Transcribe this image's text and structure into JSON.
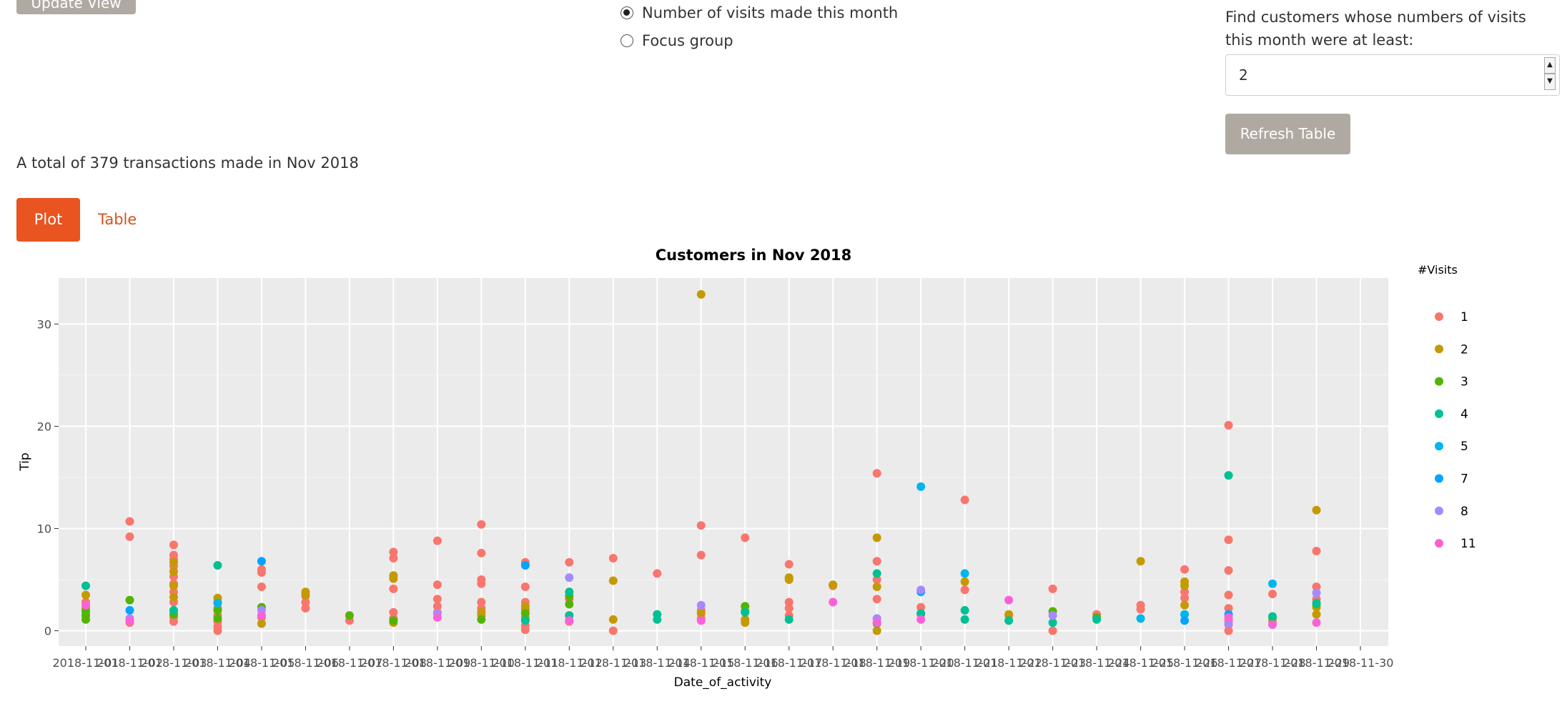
{
  "controls": {
    "update_button_label": "Update View",
    "radio_options": [
      {
        "label": "Number of visits made this month",
        "checked": true
      },
      {
        "label": "Focus group",
        "checked": false
      }
    ],
    "find_label": "Find customers whose numbers of visits this month were at least:",
    "min_visits_value": "2",
    "refresh_button_label": "Refresh Table"
  },
  "summary_text": "A total of 379 transactions made in Nov 2018",
  "tabs": [
    {
      "label": "Plot",
      "active": true
    },
    {
      "label": "Table",
      "active": false
    }
  ],
  "chart_data": {
    "type": "scatter",
    "title": "Customers in Nov 2018",
    "xlabel": "Date_of_activity",
    "ylabel": "Tip",
    "legend_title": "#Visits",
    "legend_position": "right",
    "grid": true,
    "ylim": [
      -1.5,
      34.5
    ],
    "yticks": [
      0,
      10,
      20,
      30
    ],
    "categories": [
      "2018-11-01",
      "2018-11-02",
      "2018-11-03",
      "2018-11-04",
      "2018-11-05",
      "2018-11-06",
      "2018-11-07",
      "2018-11-08",
      "2018-11-09",
      "2018-11-10",
      "2018-11-11",
      "2018-11-12",
      "2018-11-13",
      "2018-11-14",
      "2018-11-15",
      "2018-11-16",
      "2018-11-17",
      "2018-11-18",
      "2018-11-19",
      "2018-11-20",
      "2018-11-21",
      "2018-11-22",
      "2018-11-23",
      "2018-11-24",
      "2018-11-25",
      "2018-11-26",
      "2018-11-27",
      "2018-11-28",
      "2018-11-29",
      "2018-11-30"
    ],
    "series": [
      {
        "name": "1",
        "color": "#F8766D",
        "points": [
          [
            0,
            2.8
          ],
          [
            1,
            10.7
          ],
          [
            1,
            9.2
          ],
          [
            1,
            0.8
          ],
          [
            2,
            8.4
          ],
          [
            2,
            7.4
          ],
          [
            2,
            7.0
          ],
          [
            2,
            6.3
          ],
          [
            2,
            5.3
          ],
          [
            2,
            4.6
          ],
          [
            2,
            3.8
          ],
          [
            2,
            2.8
          ],
          [
            2,
            1.9
          ],
          [
            2,
            1.3
          ],
          [
            2,
            0.9
          ],
          [
            3,
            2.2
          ],
          [
            3,
            1.5
          ],
          [
            3,
            0.9
          ],
          [
            3,
            0.4
          ],
          [
            3,
            0.0
          ],
          [
            4,
            6.0
          ],
          [
            4,
            5.7
          ],
          [
            4,
            4.3
          ],
          [
            4,
            1.3
          ],
          [
            5,
            3.4
          ],
          [
            5,
            2.8
          ],
          [
            5,
            2.2
          ],
          [
            6,
            1.0
          ],
          [
            7,
            7.7
          ],
          [
            7,
            7.1
          ],
          [
            7,
            4.1
          ],
          [
            7,
            1.8
          ],
          [
            7,
            1.2
          ],
          [
            8,
            8.8
          ],
          [
            8,
            4.5
          ],
          [
            8,
            3.1
          ],
          [
            8,
            2.4
          ],
          [
            8,
            1.8
          ],
          [
            9,
            10.4
          ],
          [
            9,
            7.6
          ],
          [
            9,
            5.0
          ],
          [
            9,
            4.6
          ],
          [
            9,
            2.8
          ],
          [
            9,
            2.2
          ],
          [
            9,
            1.5
          ],
          [
            10,
            6.7
          ],
          [
            10,
            4.3
          ],
          [
            10,
            2.8
          ],
          [
            10,
            2.0
          ],
          [
            10,
            1.2
          ],
          [
            10,
            0.5
          ],
          [
            10,
            0.1
          ],
          [
            11,
            6.7
          ],
          [
            11,
            3.1
          ],
          [
            11,
            1.5
          ],
          [
            11,
            0.9
          ],
          [
            12,
            7.1
          ],
          [
            12,
            0.0
          ],
          [
            13,
            5.6
          ],
          [
            14,
            10.3
          ],
          [
            14,
            7.4
          ],
          [
            14,
            2.0
          ],
          [
            14,
            1.2
          ],
          [
            15,
            9.1
          ],
          [
            16,
            6.5
          ],
          [
            16,
            2.8
          ],
          [
            16,
            2.2
          ],
          [
            16,
            1.5
          ],
          [
            17,
            4.4
          ],
          [
            18,
            15.4
          ],
          [
            18,
            6.8
          ],
          [
            18,
            5.0
          ],
          [
            18,
            3.1
          ],
          [
            18,
            1.2
          ],
          [
            19,
            2.3
          ],
          [
            19,
            1.6
          ],
          [
            20,
            12.8
          ],
          [
            20,
            4.0
          ],
          [
            21,
            1.5
          ],
          [
            22,
            4.1
          ],
          [
            22,
            0.0
          ],
          [
            23,
            1.6
          ],
          [
            24,
            2.5
          ],
          [
            24,
            2.1
          ],
          [
            25,
            6.0
          ],
          [
            25,
            3.8
          ],
          [
            25,
            3.2
          ],
          [
            26,
            20.1
          ],
          [
            26,
            8.9
          ],
          [
            26,
            5.9
          ],
          [
            26,
            3.5
          ],
          [
            26,
            2.2
          ],
          [
            26,
            1.0
          ],
          [
            26,
            0.6
          ],
          [
            26,
            0.0
          ],
          [
            27,
            3.6
          ],
          [
            27,
            0.9
          ],
          [
            28,
            7.8
          ],
          [
            28,
            4.3
          ],
          [
            28,
            3.1
          ]
        ]
      },
      {
        "name": "2",
        "color": "#C49A00",
        "points": [
          [
            0,
            3.5
          ],
          [
            0,
            2.2
          ],
          [
            2,
            6.7
          ],
          [
            2,
            5.8
          ],
          [
            2,
            4.4
          ],
          [
            2,
            3.3
          ],
          [
            3,
            3.2
          ],
          [
            3,
            2.8
          ],
          [
            4,
            0.7
          ],
          [
            5,
            3.8
          ],
          [
            5,
            3.5
          ],
          [
            7,
            5.4
          ],
          [
            7,
            5.1
          ],
          [
            7,
            0.8
          ],
          [
            9,
            1.8
          ],
          [
            10,
            2.4
          ],
          [
            10,
            2.1
          ],
          [
            10,
            1.3
          ],
          [
            12,
            4.9
          ],
          [
            12,
            1.1
          ],
          [
            14,
            32.9
          ],
          [
            14,
            1.7
          ],
          [
            15,
            1.1
          ],
          [
            15,
            0.8
          ],
          [
            16,
            5.2
          ],
          [
            16,
            5.0
          ],
          [
            17,
            4.5
          ],
          [
            18,
            9.1
          ],
          [
            18,
            4.3
          ],
          [
            18,
            0.0
          ],
          [
            20,
            4.8
          ],
          [
            21,
            1.6
          ],
          [
            24,
            6.8
          ],
          [
            25,
            4.8
          ],
          [
            25,
            4.4
          ],
          [
            25,
            2.5
          ],
          [
            28,
            11.8
          ],
          [
            28,
            2.3
          ],
          [
            28,
            1.6
          ]
        ]
      },
      {
        "name": "3",
        "color": "#53B400",
        "points": [
          [
            0,
            1.9
          ],
          [
            0,
            1.5
          ],
          [
            0,
            1.1
          ],
          [
            1,
            3.0
          ],
          [
            2,
            1.6
          ],
          [
            3,
            2.0
          ],
          [
            3,
            1.2
          ],
          [
            4,
            2.3
          ],
          [
            6,
            1.5
          ],
          [
            7,
            1.0
          ],
          [
            9,
            1.1
          ],
          [
            10,
            1.7
          ],
          [
            11,
            3.4
          ],
          [
            11,
            2.6
          ],
          [
            15,
            2.4
          ],
          [
            15,
            1.9
          ],
          [
            18,
            0.7
          ],
          [
            22,
            1.9
          ],
          [
            23,
            1.3
          ],
          [
            27,
            1.3
          ],
          [
            28,
            2.6
          ]
        ]
      },
      {
        "name": "4",
        "color": "#00C094",
        "points": [
          [
            0,
            4.4
          ],
          [
            2,
            2.0
          ],
          [
            3,
            6.4
          ],
          [
            10,
            1.0
          ],
          [
            11,
            3.8
          ],
          [
            11,
            1.5
          ],
          [
            13,
            1.6
          ],
          [
            13,
            1.1
          ],
          [
            15,
            1.8
          ],
          [
            16,
            1.1
          ],
          [
            18,
            5.6
          ],
          [
            19,
            1.7
          ],
          [
            20,
            2.0
          ],
          [
            20,
            1.1
          ],
          [
            21,
            1.0
          ],
          [
            22,
            0.8
          ],
          [
            23,
            1.1
          ],
          [
            26,
            15.2
          ],
          [
            27,
            1.4
          ],
          [
            28,
            2.7
          ]
        ]
      },
      {
        "name": "5",
        "color": "#00B6EB",
        "points": [
          [
            3,
            2.7
          ],
          [
            19,
            14.1
          ],
          [
            20,
            5.6
          ],
          [
            24,
            1.2
          ],
          [
            25,
            1.6
          ],
          [
            27,
            4.6
          ]
        ]
      },
      {
        "name": "7",
        "color": "#06A4FF",
        "points": [
          [
            1,
            2.0
          ],
          [
            4,
            6.8
          ],
          [
            10,
            6.4
          ],
          [
            19,
            3.8
          ],
          [
            25,
            1.0
          ],
          [
            26,
            1.6
          ]
        ]
      },
      {
        "name": "8",
        "color": "#A58AFF",
        "points": [
          [
            1,
            1.2
          ],
          [
            4,
            2.0
          ],
          [
            8,
            1.7
          ],
          [
            11,
            5.2
          ],
          [
            14,
            2.5
          ],
          [
            18,
            1.2
          ],
          [
            19,
            4.0
          ],
          [
            22,
            1.5
          ],
          [
            26,
            0.7
          ],
          [
            28,
            3.7
          ]
        ]
      },
      {
        "name": "11",
        "color": "#FB61D7",
        "points": [
          [
            0,
            2.5
          ],
          [
            1,
            1.0
          ],
          [
            4,
            1.5
          ],
          [
            8,
            1.3
          ],
          [
            11,
            1.0
          ],
          [
            14,
            1.0
          ],
          [
            17,
            2.8
          ],
          [
            18,
            0.8
          ],
          [
            19,
            1.1
          ],
          [
            21,
            3.0
          ],
          [
            26,
            1.3
          ],
          [
            27,
            0.6
          ],
          [
            28,
            0.8
          ]
        ]
      }
    ]
  }
}
